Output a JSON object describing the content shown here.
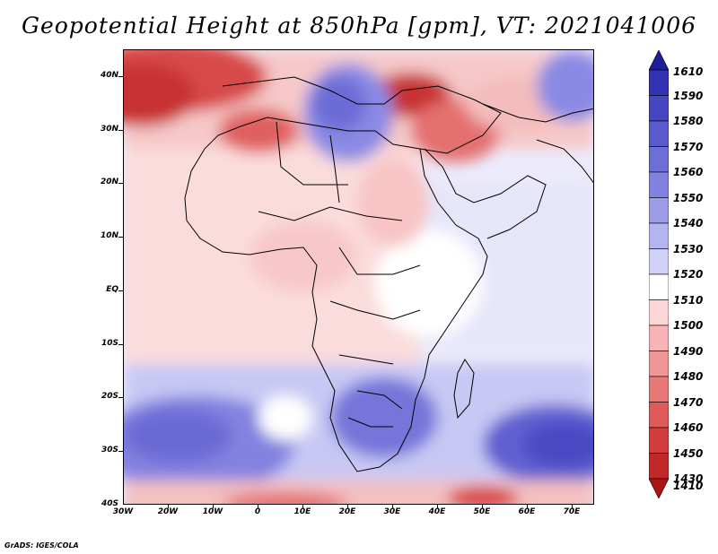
{
  "title": "Geopotential Height at 850hPa [gpm], VT: 2021041006",
  "footer": "GrADS: IGES/COLA",
  "map": {
    "projection": "lat-lon",
    "lon_range": [
      -30,
      75
    ],
    "lat_range": [
      -40,
      45
    ],
    "lat_ticks": [
      "40N",
      "30N",
      "20N",
      "10N",
      "EQ",
      "10S",
      "20S",
      "30S",
      "40S"
    ],
    "lon_ticks": [
      "30W",
      "20W",
      "10W",
      "0",
      "10E",
      "20E",
      "30E",
      "40E",
      "50E",
      "60E",
      "70E"
    ]
  },
  "colorbar": {
    "labels": [
      "1610",
      "1590",
      "1580",
      "1570",
      "1560",
      "1550",
      "1540",
      "1530",
      "1520",
      "1510",
      "1500",
      "1490",
      "1480",
      "1470",
      "1460",
      "1450",
      "1430",
      "1410"
    ],
    "colors": [
      "#1e1e9a",
      "#3232b4",
      "#4646c3",
      "#5a5acd",
      "#6e6ed7",
      "#8282e1",
      "#9b9be8",
      "#b4b4f0",
      "#d2d2f8",
      "#ffffff",
      "#fcd6d6",
      "#f8b4b4",
      "#f09696",
      "#e87878",
      "#e05a5a",
      "#d23c3c",
      "#c32828",
      "#aa1414"
    ]
  }
}
